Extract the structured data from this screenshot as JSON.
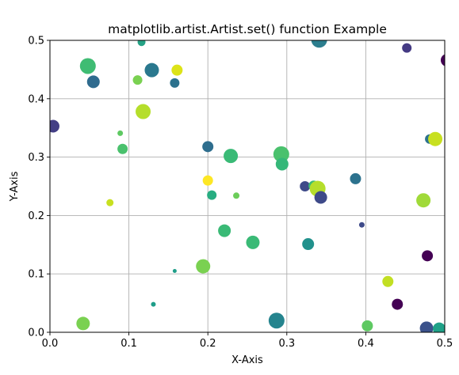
{
  "chart_data": {
    "type": "scatter",
    "title": "matplotlib.artist.Artist.set() function Example",
    "xlabel": "X-Axis",
    "ylabel": "Y-Axis",
    "xlim": [
      0,
      0.5
    ],
    "ylim": [
      0,
      0.5
    ],
    "grid": true,
    "x_ticks": [
      "0.0",
      "0.1",
      "0.2",
      "0.3",
      "0.4",
      "0.5"
    ],
    "y_ticks": [
      "0.0",
      "0.1",
      "0.2",
      "0.3",
      "0.4",
      "0.5"
    ],
    "colormap": "viridis",
    "points": [
      {
        "x": 0.116,
        "y": 0.497,
        "size": 10,
        "color": "#25a285"
      },
      {
        "x": 0.048,
        "y": 0.456,
        "size": 20,
        "color": "#3fbc73"
      },
      {
        "x": 0.055,
        "y": 0.429,
        "size": 16,
        "color": "#2f6b8e"
      },
      {
        "x": 0.111,
        "y": 0.432,
        "size": 12,
        "color": "#7ad151"
      },
      {
        "x": 0.129,
        "y": 0.449,
        "size": 18,
        "color": "#2a788e"
      },
      {
        "x": 0.161,
        "y": 0.449,
        "size": 14,
        "color": "#dde318"
      },
      {
        "x": 0.158,
        "y": 0.427,
        "size": 12,
        "color": "#2c728e"
      },
      {
        "x": 0.341,
        "y": 0.501,
        "size": 20,
        "color": "#2c7e8e"
      },
      {
        "x": 0.452,
        "y": 0.487,
        "size": 12,
        "color": "#443a83"
      },
      {
        "x": 0.503,
        "y": 0.466,
        "size": 16,
        "color": "#440154"
      },
      {
        "x": 0.004,
        "y": 0.353,
        "size": 16,
        "color": "#433e85"
      },
      {
        "x": 0.089,
        "y": 0.341,
        "size": 7,
        "color": "#5ec962"
      },
      {
        "x": 0.092,
        "y": 0.314,
        "size": 13,
        "color": "#4ac16d"
      },
      {
        "x": 0.118,
        "y": 0.378,
        "size": 19,
        "color": "#b5de2b"
      },
      {
        "x": 0.2,
        "y": 0.318,
        "size": 14,
        "color": "#2e6e8e"
      },
      {
        "x": 0.229,
        "y": 0.302,
        "size": 18,
        "color": "#3aba76"
      },
      {
        "x": 0.293,
        "y": 0.305,
        "size": 20,
        "color": "#4ac16d"
      },
      {
        "x": 0.294,
        "y": 0.288,
        "size": 16,
        "color": "#35b779"
      },
      {
        "x": 0.2,
        "y": 0.26,
        "size": 13,
        "color": "#fde725"
      },
      {
        "x": 0.205,
        "y": 0.235,
        "size": 12,
        "color": "#27ad81"
      },
      {
        "x": 0.236,
        "y": 0.234,
        "size": 8,
        "color": "#6ccd5a"
      },
      {
        "x": 0.076,
        "y": 0.222,
        "size": 9,
        "color": "#c8e020"
      },
      {
        "x": 0.323,
        "y": 0.25,
        "size": 13,
        "color": "#3e4a89"
      },
      {
        "x": 0.334,
        "y": 0.251,
        "size": 13,
        "color": "#3aba76"
      },
      {
        "x": 0.339,
        "y": 0.246,
        "size": 20,
        "color": "#b5de2b"
      },
      {
        "x": 0.343,
        "y": 0.231,
        "size": 16,
        "color": "#3e4a89"
      },
      {
        "x": 0.387,
        "y": 0.263,
        "size": 14,
        "color": "#2c728e"
      },
      {
        "x": 0.481,
        "y": 0.331,
        "size": 12,
        "color": "#2c728e"
      },
      {
        "x": 0.488,
        "y": 0.331,
        "size": 18,
        "color": "#c8e020"
      },
      {
        "x": 0.473,
        "y": 0.226,
        "size": 18,
        "color": "#a0da39"
      },
      {
        "x": 0.395,
        "y": 0.184,
        "size": 7,
        "color": "#3e4a89"
      },
      {
        "x": 0.221,
        "y": 0.174,
        "size": 16,
        "color": "#3aba76"
      },
      {
        "x": 0.257,
        "y": 0.154,
        "size": 17,
        "color": "#3aba76"
      },
      {
        "x": 0.327,
        "y": 0.151,
        "size": 15,
        "color": "#21918c"
      },
      {
        "x": 0.158,
        "y": 0.105,
        "size": 5,
        "color": "#1f9e89"
      },
      {
        "x": 0.194,
        "y": 0.113,
        "size": 18,
        "color": "#7ad151"
      },
      {
        "x": 0.478,
        "y": 0.131,
        "size": 14,
        "color": "#440154"
      },
      {
        "x": 0.428,
        "y": 0.087,
        "size": 14,
        "color": "#c2df23"
      },
      {
        "x": 0.131,
        "y": 0.048,
        "size": 6,
        "color": "#1f9e89"
      },
      {
        "x": 0.44,
        "y": 0.048,
        "size": 14,
        "color": "#440154"
      },
      {
        "x": 0.042,
        "y": 0.015,
        "size": 17,
        "color": "#7ad151"
      },
      {
        "x": 0.287,
        "y": 0.02,
        "size": 20,
        "color": "#25848e"
      },
      {
        "x": 0.402,
        "y": 0.011,
        "size": 14,
        "color": "#5ec962"
      },
      {
        "x": 0.477,
        "y": 0.007,
        "size": 17,
        "color": "#3b528b"
      },
      {
        "x": 0.493,
        "y": 0.006,
        "size": 16,
        "color": "#1fa187"
      }
    ]
  }
}
